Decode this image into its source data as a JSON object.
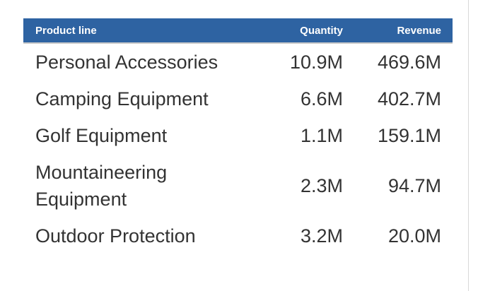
{
  "table": {
    "header": [
      "Product line",
      "Quantity",
      "Revenue"
    ],
    "rows": [
      [
        "Personal Accessories",
        "10.9M",
        "469.6M"
      ],
      [
        "Camping Equipment",
        "6.6M",
        "402.7M"
      ],
      [
        "Golf Equipment",
        "1.1M",
        "159.1M"
      ],
      [
        "Mountaineering Equipment",
        "2.3M",
        "94.7M"
      ],
      [
        "Outdoor Protection",
        "3.2M",
        "20.0M"
      ]
    ]
  }
}
